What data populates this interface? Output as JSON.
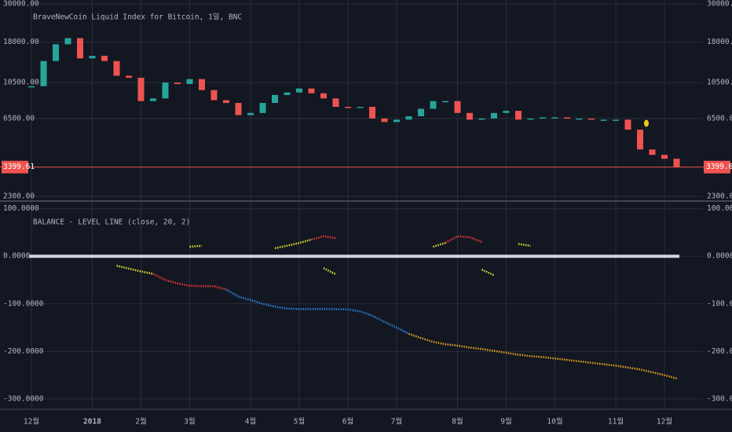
{
  "chart_data": [
    {
      "type": "candlestick",
      "title": "BraveNewCoin Liquid Index for Bitcoin, 1일, BNC",
      "values": [
        10000,
        14000,
        17500,
        19000,
        14500,
        15000,
        14000,
        11500,
        11200,
        8200,
        8500,
        10500,
        10300,
        11000,
        9500,
        8300,
        8000,
        6800,
        7000,
        8000,
        8900,
        9200,
        9700,
        9100,
        8500,
        7600,
        7500,
        7600,
        6500,
        6200,
        6400,
        6700,
        7400,
        8200,
        8200,
        7000,
        6400,
        6500,
        7000,
        7200,
        6400,
        6500,
        6600,
        6600,
        6500,
        6500,
        6400,
        6400,
        6400,
        5600,
        4300,
        4000,
        3800,
        3400
      ],
      "up_color": "#26a69a",
      "down_color": "#ef5350",
      "log_scale": true,
      "grid": true,
      "ylim": [
        2160,
        31600
      ],
      "yticks": [
        {
          "value": 2300,
          "label": "2300.00"
        },
        {
          "value": 6500,
          "label": "6500.00"
        },
        {
          "value": 10500,
          "label": "10500.00"
        },
        {
          "value": 18000,
          "label": "18000.00"
        },
        {
          "value": 30000,
          "label": "30000.00"
        }
      ],
      "price_line": 3399.61,
      "price_line_color": "#ef5350"
    },
    {
      "type": "line",
      "title": "BALANCE - LEVEL LINE (close, 20, 2)",
      "categories": [
        "12월",
        null,
        null,
        null,
        null,
        "2018",
        null,
        null,
        null,
        "2월",
        null,
        null,
        null,
        "3월",
        null,
        null,
        null,
        null,
        "4월",
        null,
        null,
        null,
        "5월",
        null,
        null,
        null,
        "6월",
        null,
        null,
        null,
        "7월",
        null,
        null,
        null,
        null,
        "8월",
        null,
        null,
        null,
        "9월",
        null,
        null,
        null,
        "10월",
        null,
        null,
        null,
        null,
        "11월",
        null,
        null,
        null,
        "12월",
        null
      ],
      "grid": true,
      "ylim": [
        -320,
        116
      ],
      "yticks": [
        {
          "value": -300,
          "label": "-300.0000"
        },
        {
          "value": -200,
          "label": "-200.0000"
        },
        {
          "value": -100,
          "label": "-100.0000"
        },
        {
          "value": 0,
          "label": "0.0000"
        },
        {
          "value": 100,
          "label": "100.0000"
        }
      ],
      "series": [
        {
          "color": "#e0e030",
          "values": [
            null,
            null,
            null,
            null,
            null,
            null,
            null,
            -20,
            -26,
            -32,
            -37,
            null,
            null,
            20,
            22,
            null,
            null,
            null,
            null,
            null,
            17,
            22,
            28,
            35,
            null,
            null,
            null,
            null,
            null,
            null,
            null,
            null,
            null,
            20,
            28,
            null,
            null,
            null,
            null,
            null,
            26,
            22,
            null,
            null,
            null,
            null,
            null,
            null,
            null,
            null,
            null,
            null,
            null,
            null
          ]
        },
        {
          "color": "#e0e030",
          "values": [
            null,
            null,
            null,
            null,
            null,
            null,
            null,
            null,
            null,
            null,
            null,
            null,
            null,
            null,
            null,
            null,
            null,
            null,
            null,
            null,
            null,
            null,
            null,
            null,
            -25,
            -38,
            null,
            null,
            null,
            null,
            null,
            null,
            null,
            null,
            null,
            null,
            null,
            -28,
            -40,
            null,
            null,
            null,
            null,
            null,
            null,
            null,
            null,
            null,
            null,
            null,
            null,
            null,
            null,
            null
          ]
        },
        {
          "color": "#e53935",
          "values": [
            null,
            null,
            null,
            null,
            null,
            null,
            null,
            null,
            null,
            null,
            -37,
            -50,
            -57,
            -62,
            -63,
            -63,
            -70,
            null,
            null,
            null,
            null,
            null,
            null,
            35,
            42,
            38,
            null,
            null,
            null,
            null,
            null,
            null,
            null,
            null,
            28,
            42,
            40,
            30,
            null,
            null,
            null,
            null,
            null,
            null,
            null,
            null,
            null,
            null,
            null,
            null,
            null,
            null,
            null,
            null
          ]
        },
        {
          "color": "#2f80d8",
          "values": [
            null,
            null,
            null,
            null,
            null,
            null,
            null,
            null,
            null,
            null,
            null,
            null,
            null,
            null,
            null,
            null,
            -70,
            -85,
            -92,
            -100,
            -106,
            -110,
            -111,
            -111,
            -111,
            -111,
            -112,
            -116,
            -125,
            -138,
            -150,
            -163,
            null,
            null,
            null,
            null,
            null,
            null,
            null,
            null,
            null,
            null,
            null,
            null,
            null,
            null,
            null,
            null,
            null,
            null,
            null,
            null,
            null,
            null
          ]
        },
        {
          "color": "#e0a020",
          "values": [
            null,
            null,
            null,
            null,
            null,
            null,
            null,
            null,
            null,
            null,
            null,
            null,
            null,
            null,
            null,
            null,
            null,
            null,
            null,
            null,
            null,
            null,
            null,
            null,
            null,
            null,
            null,
            null,
            null,
            null,
            null,
            -163,
            -172,
            -180,
            -185,
            -188,
            -192,
            -195,
            -199,
            -203,
            -207,
            -210,
            -212,
            -215,
            -218,
            -221,
            -224,
            -227,
            -230,
            -234,
            -238,
            -244,
            -250,
            -257
          ]
        }
      ]
    }
  ]
}
